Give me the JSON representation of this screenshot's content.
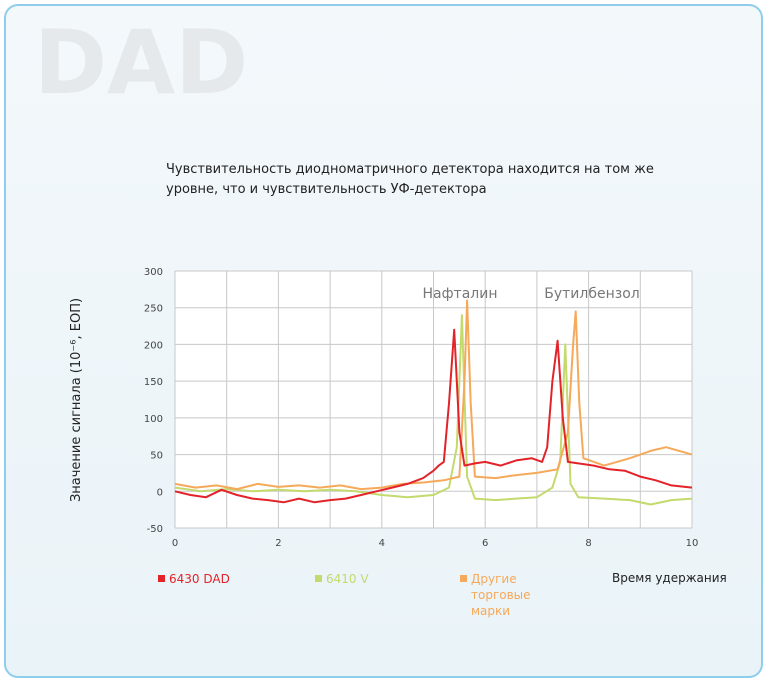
{
  "chart_data": {
    "type": "line",
    "watermark": "DAD",
    "title": "Чувствительность диодноматричного детектора находится на том же уровне, что и чувствительность УФ-детектора",
    "y_label": "Значение сигнала (10⁻⁶, ЕОП)",
    "x_label": "Время удержания",
    "annotations": [
      "Нафталин",
      "Бутилбензол"
    ],
    "xlim": [
      0,
      10
    ],
    "xticks": [
      0,
      2,
      4,
      6,
      8,
      10
    ],
    "xgrid": [
      0,
      1,
      2,
      3,
      4,
      5,
      6,
      7,
      8,
      9,
      10
    ],
    "ylim": [
      -50,
      300
    ],
    "yticks": [
      -50,
      0,
      50,
      100,
      150,
      200,
      250,
      300
    ],
    "grid": true,
    "series": [
      {
        "name": "6430 DAD",
        "color": "#e3232a",
        "x": [
          0,
          0.3,
          0.6,
          0.9,
          1.2,
          1.5,
          1.8,
          2.1,
          2.4,
          2.7,
          3.0,
          3.3,
          3.6,
          3.9,
          4.2,
          4.5,
          4.8,
          5.0,
          5.1,
          5.2,
          5.3,
          5.4,
          5.5,
          5.6,
          5.8,
          6.0,
          6.3,
          6.6,
          6.9,
          7.1,
          7.2,
          7.3,
          7.4,
          7.5,
          7.6,
          7.8,
          8.1,
          8.4,
          8.7,
          9.0,
          9.3,
          9.6,
          10
        ],
        "values": [
          0,
          -5,
          -8,
          2,
          -5,
          -10,
          -12,
          -15,
          -10,
          -15,
          -12,
          -10,
          -5,
          0,
          5,
          10,
          18,
          28,
          35,
          40,
          120,
          220,
          80,
          35,
          38,
          40,
          35,
          42,
          45,
          40,
          60,
          150,
          205,
          100,
          40,
          38,
          35,
          30,
          28,
          20,
          15,
          8,
          5
        ]
      },
      {
        "name": "6410 V",
        "color": "#c3da6c",
        "x": [
          0,
          0.5,
          1,
          1.5,
          2,
          2.5,
          3,
          3.5,
          4,
          4.5,
          5,
          5.3,
          5.45,
          5.55,
          5.65,
          5.8,
          6.2,
          6.6,
          7,
          7.3,
          7.45,
          7.55,
          7.65,
          7.8,
          8.3,
          8.8,
          9.2,
          9.6,
          10
        ],
        "values": [
          5,
          0,
          3,
          0,
          2,
          0,
          2,
          0,
          -5,
          -8,
          -5,
          5,
          60,
          240,
          20,
          -10,
          -12,
          -10,
          -8,
          5,
          40,
          200,
          10,
          -8,
          -10,
          -12,
          -18,
          -12,
          -10
        ]
      },
      {
        "name": "Другие торговые марки",
        "color": "#f5a95a",
        "x": [
          0,
          0.4,
          0.8,
          1.2,
          1.6,
          2,
          2.4,
          2.8,
          3.2,
          3.6,
          4,
          4.4,
          4.8,
          5.2,
          5.5,
          5.6,
          5.65,
          5.72,
          5.8,
          6.2,
          6.6,
          7,
          7.4,
          7.6,
          7.7,
          7.75,
          7.82,
          7.9,
          8.3,
          8.8,
          9.2,
          9.5,
          10
        ],
        "values": [
          10,
          5,
          8,
          3,
          10,
          6,
          8,
          5,
          8,
          3,
          5,
          10,
          12,
          15,
          20,
          150,
          260,
          120,
          20,
          18,
          22,
          25,
          30,
          80,
          200,
          245,
          120,
          45,
          35,
          45,
          55,
          60,
          50
        ]
      }
    ]
  }
}
